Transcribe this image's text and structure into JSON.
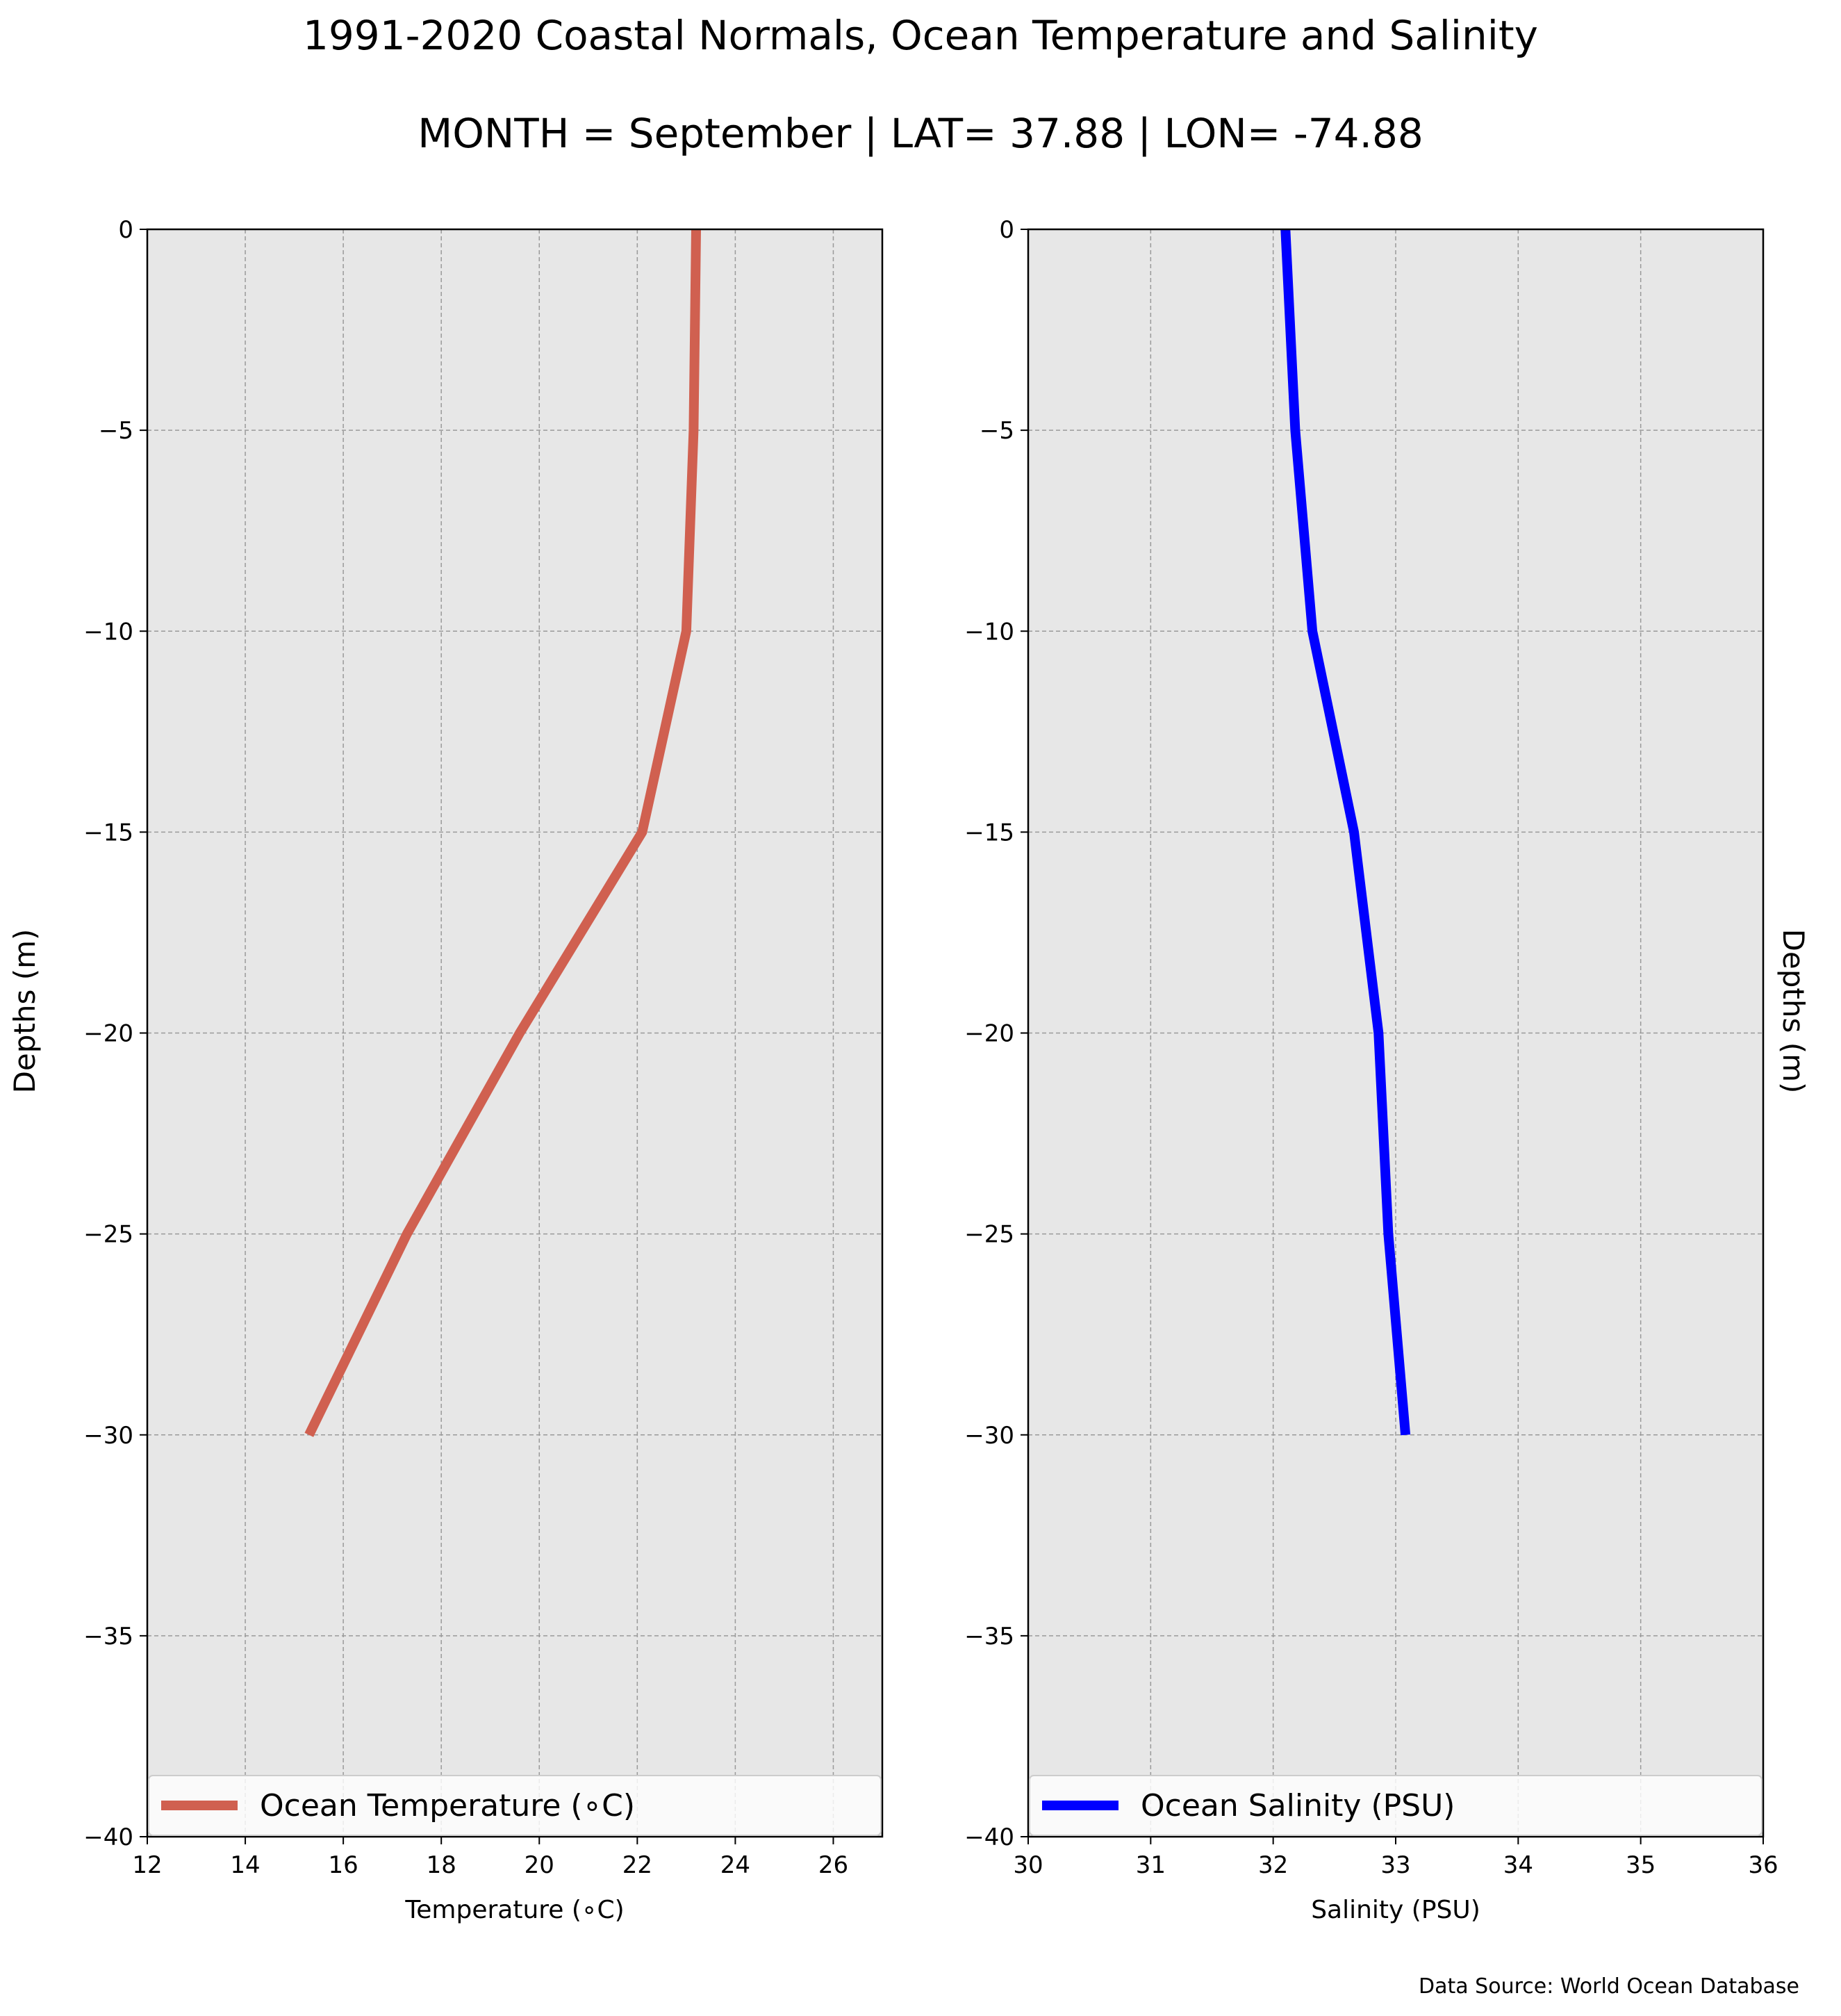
{
  "figure": {
    "title": "1991-2020 Coastal Normals, Ocean Temperature and Salinity",
    "subtitle": "MONTH = September | LAT= 37.88 | LON= -74.88",
    "source": "Data Source: World Ocean Database"
  },
  "chart_data": [
    {
      "type": "line",
      "orientation": "vertical-profile",
      "xlabel": "Temperature (∘C)",
      "ylabel": "Depths (m)",
      "xlim": [
        12,
        27
      ],
      "ylim": [
        -40,
        0
      ],
      "xticks": [
        12,
        14,
        16,
        18,
        20,
        22,
        24,
        26
      ],
      "yticks": [
        0,
        -5,
        -10,
        -15,
        -20,
        -25,
        -30,
        -35,
        -40
      ],
      "ytick_labels": [
        "0",
        "−5",
        "−10",
        "−15",
        "−20",
        "−25",
        "−30",
        "−35",
        "−40"
      ],
      "grid": true,
      "legend_position": "bottom",
      "series": [
        {
          "name": "Ocean Temperature (∘C)",
          "color": "#d06050",
          "points": [
            {
              "x": 23.2,
              "y": 0
            },
            {
              "x": 23.15,
              "y": -5
            },
            {
              "x": 23.0,
              "y": -10
            },
            {
              "x": 22.1,
              "y": -15
            },
            {
              "x": 19.6,
              "y": -20
            },
            {
              "x": 17.3,
              "y": -25
            },
            {
              "x": 15.3,
              "y": -30
            }
          ]
        }
      ]
    },
    {
      "type": "line",
      "orientation": "vertical-profile",
      "xlabel": "Salinity (PSU)",
      "ylabel": "Depths (m)",
      "xlim": [
        30,
        36
      ],
      "ylim": [
        -40,
        0
      ],
      "xticks": [
        30,
        31,
        32,
        33,
        34,
        35,
        36
      ],
      "yticks": [
        0,
        -5,
        -10,
        -15,
        -20,
        -25,
        -30,
        -35,
        -40
      ],
      "ytick_labels": [
        "0",
        "−5",
        "−10",
        "−15",
        "−20",
        "−25",
        "−30",
        "−35",
        "−40"
      ],
      "grid": true,
      "legend_position": "bottom",
      "series": [
        {
          "name": "Ocean Salinity (PSU)",
          "color": "#0000ff",
          "points": [
            {
              "x": 32.1,
              "y": 0
            },
            {
              "x": 32.18,
              "y": -5
            },
            {
              "x": 32.32,
              "y": -10
            },
            {
              "x": 32.66,
              "y": -15
            },
            {
              "x": 32.86,
              "y": -20
            },
            {
              "x": 32.94,
              "y": -25
            },
            {
              "x": 33.08,
              "y": -30
            }
          ]
        }
      ]
    }
  ]
}
